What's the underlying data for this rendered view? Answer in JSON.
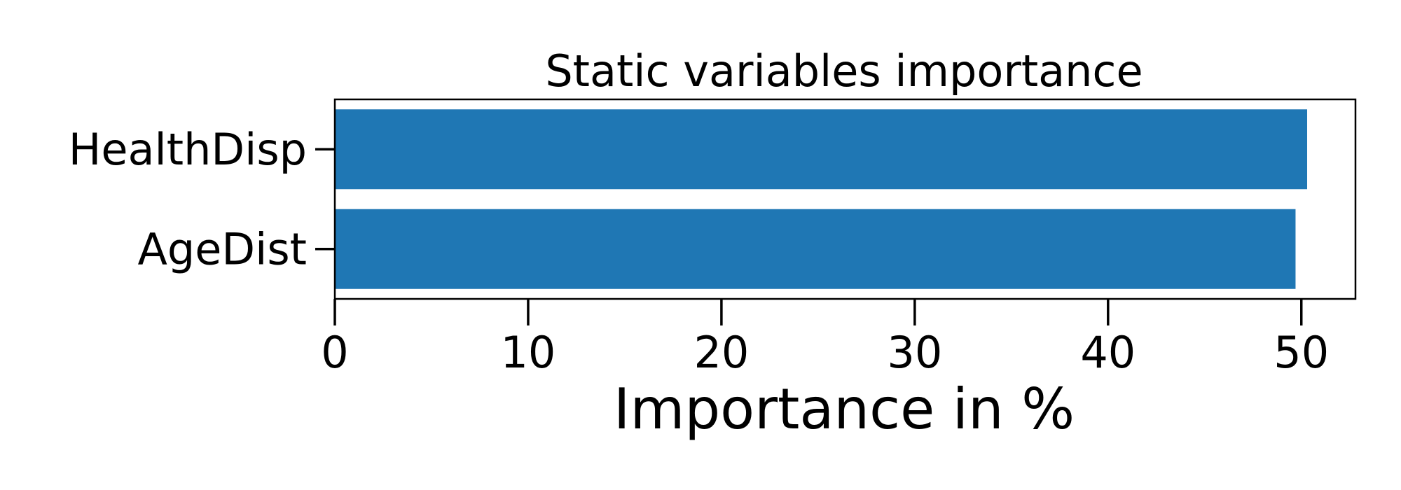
{
  "chart_data": {
    "type": "bar",
    "orientation": "horizontal",
    "title": "Static variables importance",
    "xlabel": "Importance in %",
    "ylabel": "",
    "categories": [
      "HealthDisp",
      "AgeDist"
    ],
    "values": [
      50.3,
      49.7
    ],
    "xlim": [
      0,
      52.8
    ],
    "xticks": [
      0,
      10,
      20,
      30,
      40,
      50
    ],
    "bar_color": "#1f77b4",
    "grid": false,
    "legend": "none"
  }
}
